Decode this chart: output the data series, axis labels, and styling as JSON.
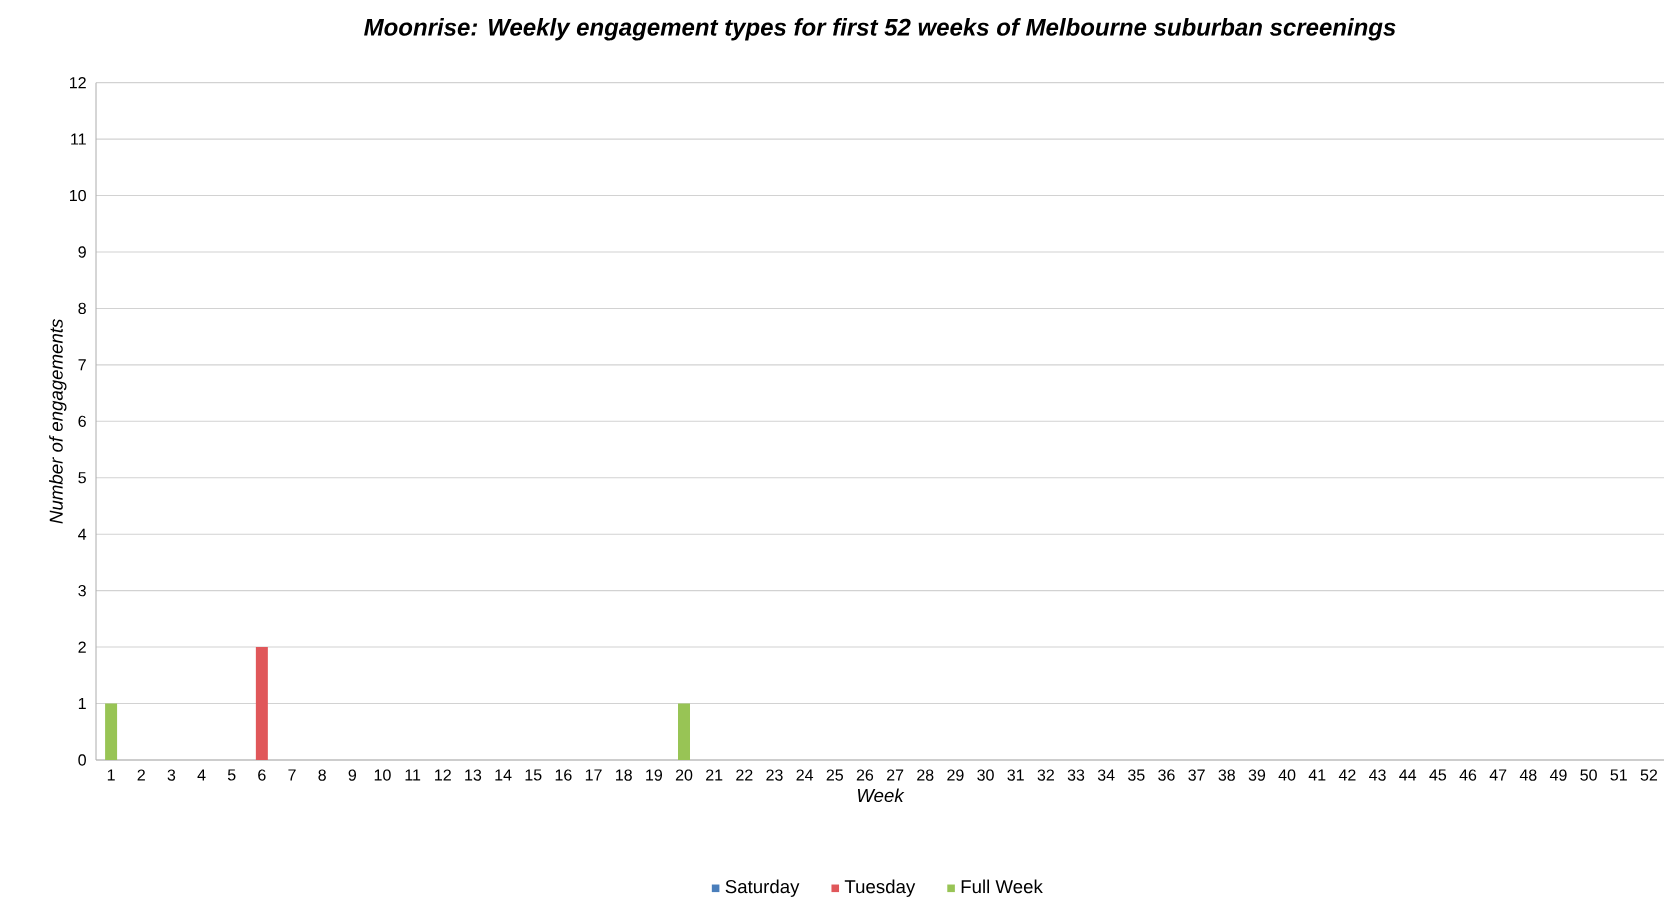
{
  "chart_data": {
    "type": "bar",
    "stacked": true,
    "title": "Moonrise: Weekly engagement types for first 52 weeks of Melbourne suburban screenings",
    "xlabel": "Week",
    "ylabel": "Number of engagements",
    "categories": [
      "1",
      "2",
      "3",
      "4",
      "5",
      "6",
      "7",
      "8",
      "9",
      "10",
      "11",
      "12",
      "13",
      "14",
      "15",
      "16",
      "17",
      "18",
      "19",
      "20",
      "21",
      "22",
      "23",
      "24",
      "25",
      "26",
      "27",
      "28",
      "29",
      "30",
      "31",
      "32",
      "33",
      "34",
      "35",
      "36",
      "37",
      "38",
      "39",
      "40",
      "41",
      "42",
      "43",
      "44",
      "45",
      "46",
      "47",
      "48",
      "49",
      "50",
      "51",
      "52"
    ],
    "series": [
      {
        "name": "Saturday",
        "color": "#4a7ebb",
        "values": [
          0,
          0,
          0,
          0,
          0,
          0,
          0,
          0,
          0,
          0,
          0,
          0,
          0,
          0,
          0,
          0,
          0,
          0,
          0,
          0,
          0,
          0,
          0,
          0,
          0,
          0,
          0,
          0,
          0,
          0,
          0,
          0,
          0,
          0,
          0,
          0,
          0,
          0,
          0,
          0,
          0,
          0,
          0,
          0,
          0,
          0,
          0,
          0,
          0,
          0,
          0,
          0
        ]
      },
      {
        "name": "Tuesday",
        "color": "#e0575a",
        "values": [
          0,
          0,
          0,
          0,
          0,
          2,
          0,
          0,
          0,
          0,
          0,
          0,
          0,
          0,
          0,
          0,
          0,
          0,
          0,
          0,
          0,
          0,
          0,
          0,
          0,
          0,
          0,
          0,
          0,
          0,
          0,
          0,
          0,
          0,
          0,
          0,
          0,
          0,
          0,
          0,
          0,
          0,
          0,
          0,
          0,
          0,
          0,
          0,
          0,
          0,
          0,
          0
        ]
      },
      {
        "name": "Full Week",
        "color": "#98c455",
        "values": [
          1,
          0,
          0,
          0,
          0,
          0,
          0,
          0,
          0,
          0,
          0,
          0,
          0,
          0,
          0,
          0,
          0,
          0,
          0,
          1,
          0,
          0,
          0,
          0,
          0,
          0,
          0,
          0,
          0,
          0,
          0,
          0,
          0,
          0,
          0,
          0,
          0,
          0,
          0,
          0,
          0,
          0,
          0,
          0,
          0,
          0,
          0,
          0,
          0,
          0,
          0,
          0
        ]
      }
    ],
    "ylim": [
      0,
      12
    ],
    "yticks": [
      0,
      1,
      2,
      3,
      4,
      5,
      6,
      7,
      8,
      9,
      10,
      11,
      12
    ],
    "grid": "y",
    "legend": "bottom"
  }
}
